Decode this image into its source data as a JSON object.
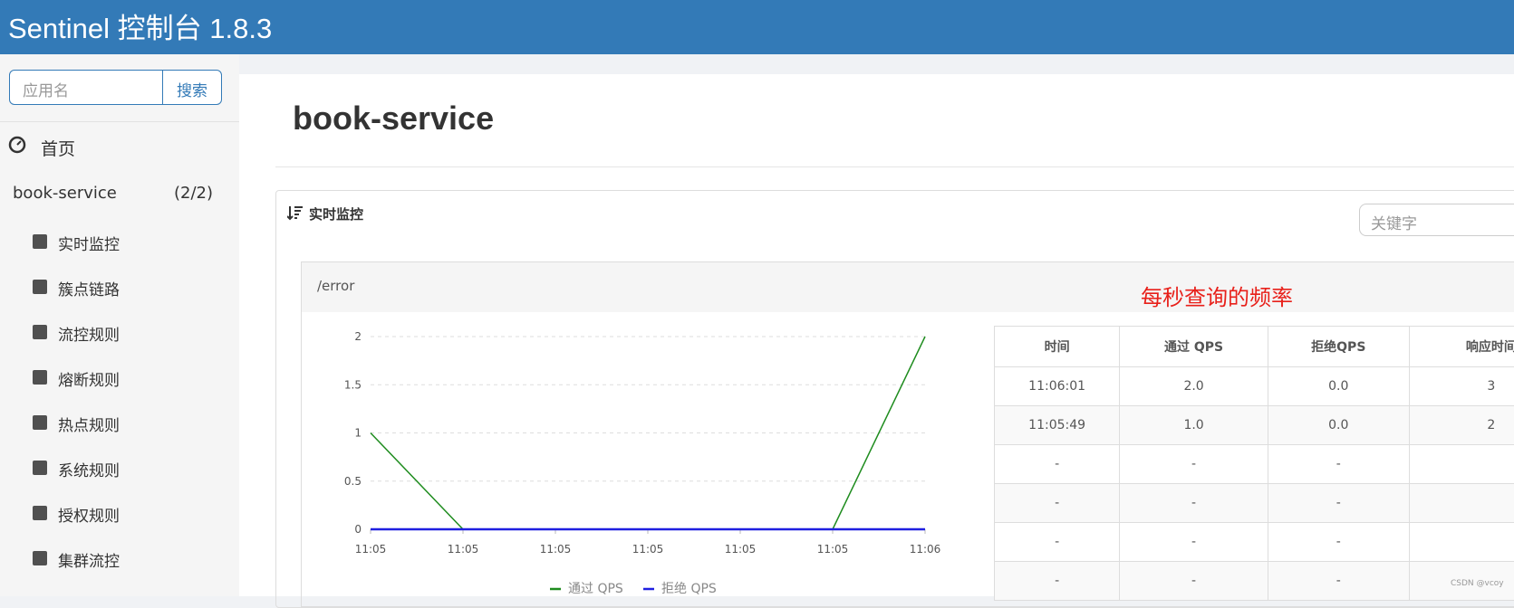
{
  "header": {
    "title": "Sentinel 控制台 1.8.3"
  },
  "sidebar": {
    "search_placeholder": "应用名",
    "search_button": "搜索",
    "home": "首页",
    "app": {
      "name": "book-service",
      "count": "(2/2)"
    },
    "menu": [
      "实时监控",
      "簇点链路",
      "流控规则",
      "熔断规则",
      "热点规则",
      "系统规则",
      "授权规则",
      "集群流控"
    ]
  },
  "main": {
    "title": "book-service",
    "panel_title": "实时监控",
    "keyword_placeholder": "关键字",
    "resource": "/error",
    "annotation": "每秒查询的频率",
    "table": {
      "headers": [
        "时间",
        "通过 QPS",
        "拒绝QPS",
        "响应时间"
      ],
      "rows": [
        [
          "11:06:01",
          "2.0",
          "0.0",
          "3"
        ],
        [
          "11:05:49",
          "1.0",
          "0.0",
          "2"
        ],
        [
          "-",
          "-",
          "-"
        ],
        [
          "-",
          "-",
          "-"
        ],
        [
          "-",
          "-",
          "-"
        ],
        [
          "-",
          "-",
          "-"
        ]
      ]
    }
  },
  "chart_data": {
    "type": "line",
    "categories": [
      "11:05",
      "11:05",
      "11:05",
      "11:05",
      "11:05",
      "11:05",
      "11:06"
    ],
    "series": [
      {
        "name": "通过 QPS",
        "color": "#1e8c1e",
        "values": [
          1,
          0,
          0,
          0,
          0,
          0,
          2
        ]
      },
      {
        "name": "拒绝 QPS",
        "color": "#1f1fe0",
        "values": [
          0,
          0,
          0,
          0,
          0,
          0,
          0
        ]
      }
    ],
    "ylim": [
      0,
      2
    ],
    "yticks": [
      0,
      0.5,
      1,
      1.5,
      2
    ],
    "grid": true
  },
  "watermark": "CSDN @vcoy"
}
